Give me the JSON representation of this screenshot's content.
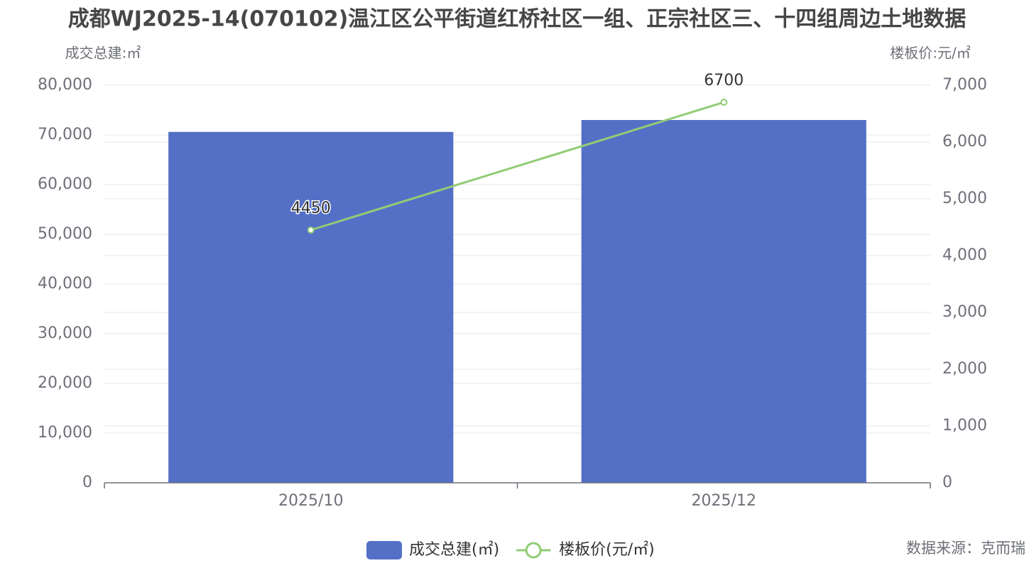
{
  "chart_data": {
    "type": "bar-line",
    "title": "成都WJ2025-14(070102)温江区公平街道红桥社区一组、正宗社区三、十四组周边土地数据",
    "y_axis_label": "成交总建:㎡",
    "y2_axis_label": "楼板价:元/㎡",
    "source": "数据来源：克而瑞",
    "categories": [
      "2025/10",
      "2025/12"
    ],
    "series": [
      {
        "name": "成交总建(㎡)",
        "type": "bar",
        "color": "#5470c6",
        "values": [
          70600,
          73000
        ]
      },
      {
        "name": "楼板价(元/㎡)",
        "type": "line",
        "axis": "y2",
        "color": "#91cc75",
        "values": [
          4450,
          6700
        ]
      }
    ],
    "ylim": [
      0,
      80000
    ],
    "yticks": [
      0,
      {
        "value": 10000,
        "label": "10,000"
      },
      {
        "value": 20000,
        "label": "20,000"
      },
      {
        "value": 30000,
        "label": "30,000"
      },
      {
        "value": 40000,
        "label": "40,000"
      },
      {
        "value": 50000,
        "label": "50,000"
      },
      {
        "value": 60000,
        "label": "60,000"
      },
      {
        "value": 70000,
        "label": "70,000"
      },
      {
        "value": 80000,
        "label": "80,000"
      }
    ],
    "y2lim": [
      0,
      7000
    ],
    "y2ticks": [
      0,
      {
        "value": 1000,
        "label": "1,000"
      },
      {
        "value": 2000,
        "label": "2,000"
      },
      {
        "value": 3000,
        "label": "3,000"
      },
      {
        "value": 4000,
        "label": "4,000"
      },
      {
        "value": 5000,
        "label": "5,000"
      },
      {
        "value": 6000,
        "label": "6,000"
      },
      {
        "value": 7000,
        "label": "7,000"
      }
    ],
    "grid": true,
    "legend": "bottom"
  }
}
